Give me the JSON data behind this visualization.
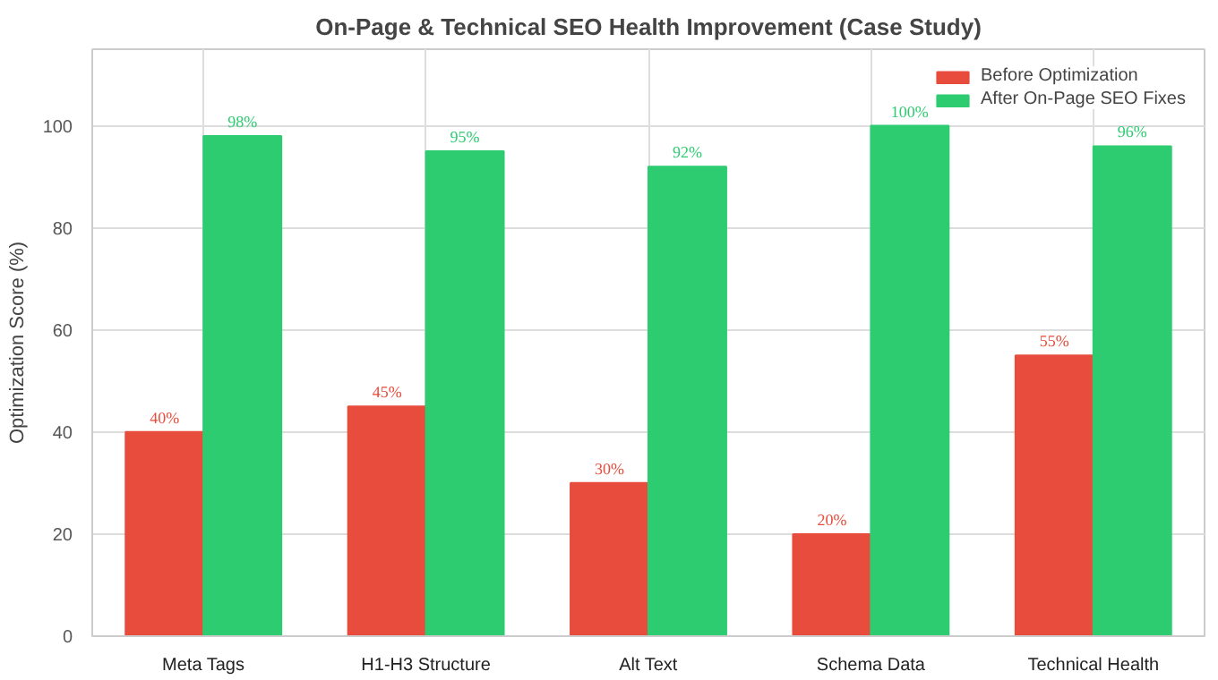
{
  "chart_data": {
    "type": "bar",
    "title": "On-Page & Technical SEO Health Improvement (Case Study)",
    "ylabel": "Optimization Score (%)",
    "categories": [
      "Meta Tags",
      "H1-H3 Structure",
      "Alt Text",
      "Schema Data",
      "Technical Health"
    ],
    "series": [
      {
        "name": "Before Optimization",
        "color": "#e74c3c",
        "values": [
          40,
          45,
          30,
          20,
          55
        ],
        "value_labels": [
          "40%",
          "45%",
          "30%",
          "20%",
          "55%"
        ]
      },
      {
        "name": "After On-Page SEO Fixes",
        "color": "#2ecc71",
        "values": [
          98,
          95,
          92,
          100,
          96
        ],
        "value_labels": [
          "98%",
          "95%",
          "92%",
          "100%",
          "96%"
        ]
      }
    ],
    "ylim": [
      0,
      115
    ],
    "yticks": [
      0,
      20,
      40,
      60,
      80,
      100
    ],
    "grid": true,
    "legend": "top right"
  }
}
